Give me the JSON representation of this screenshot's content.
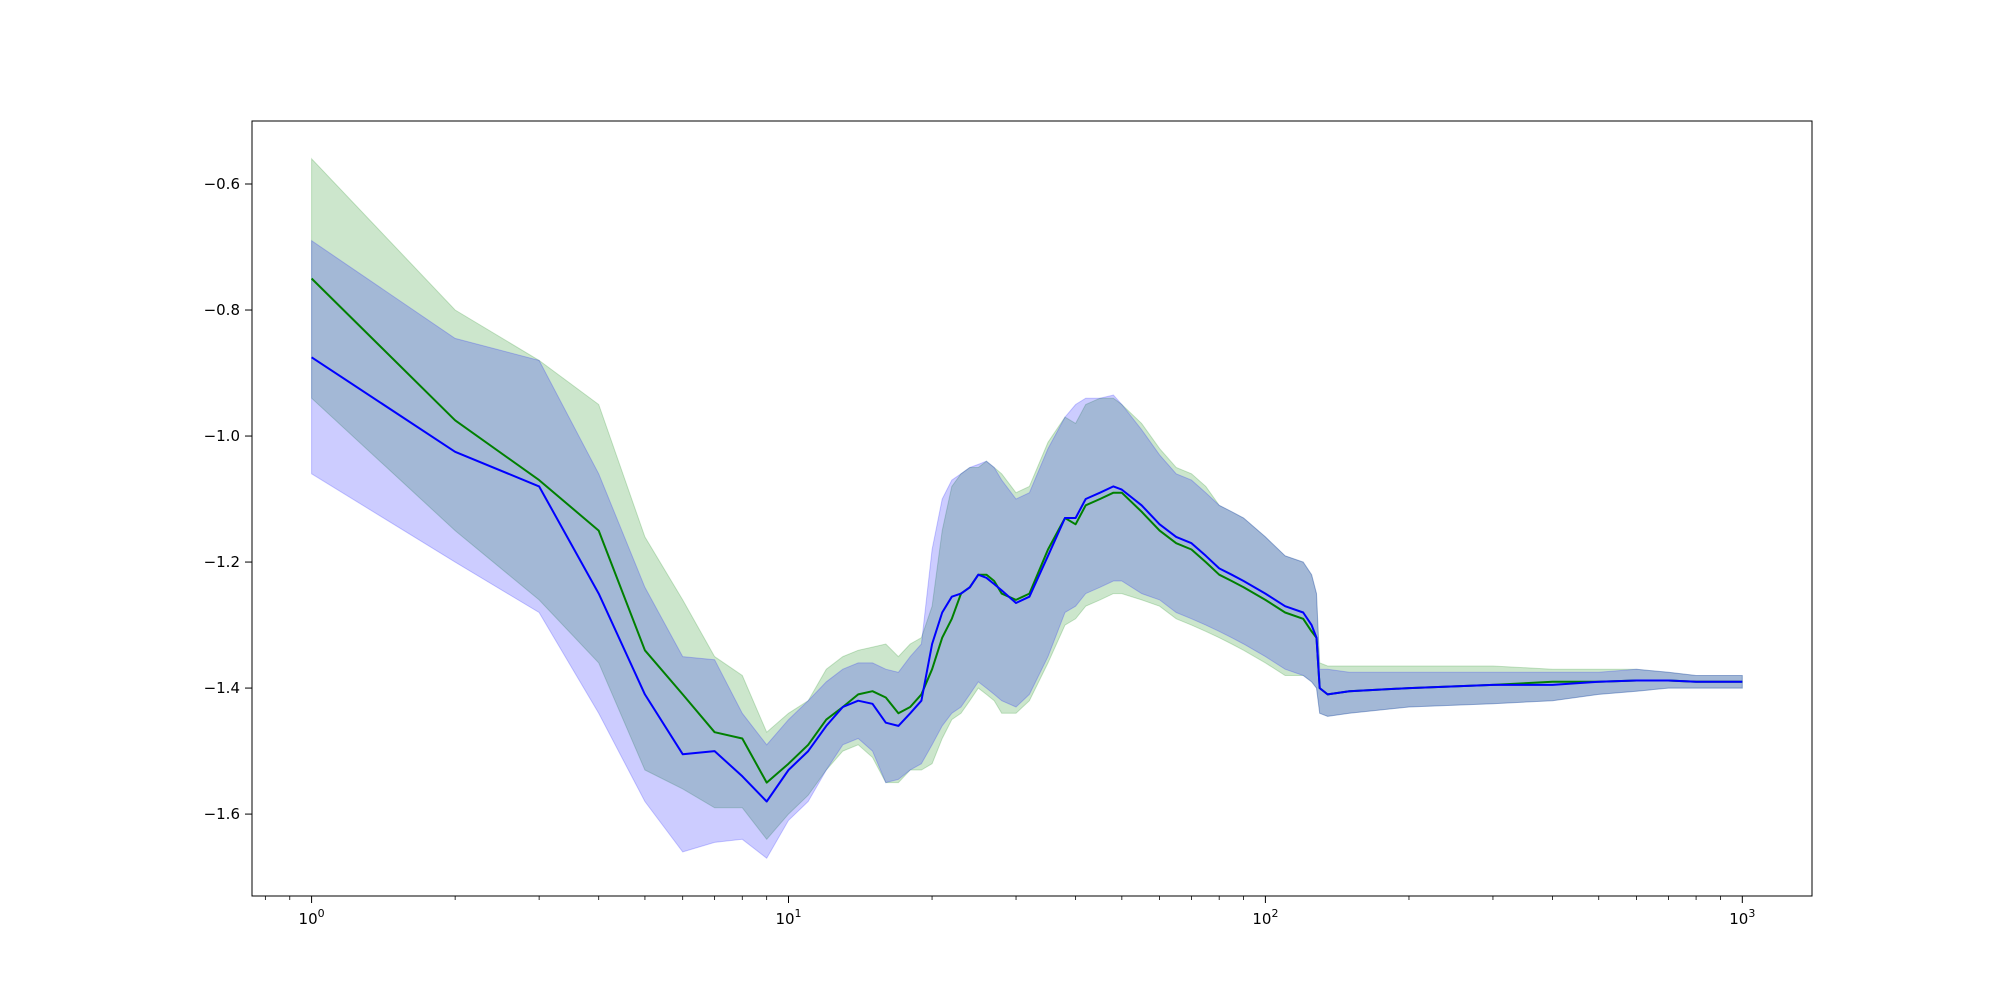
{
  "chart_data": {
    "type": "line",
    "title": "",
    "xlabel": "",
    "ylabel": "",
    "x_scale": "log",
    "xlim": [
      0.75,
      1400
    ],
    "ylim": [
      -1.73,
      -0.5
    ],
    "grid": false,
    "legend": "none",
    "x_tick_labels": [
      {
        "value": 1,
        "base": "10",
        "exp": "0"
      },
      {
        "value": 10,
        "base": "10",
        "exp": "1"
      },
      {
        "value": 100,
        "base": "10",
        "exp": "2"
      },
      {
        "value": 1000,
        "base": "10",
        "exp": "3"
      }
    ],
    "y_ticks": [
      {
        "value": -0.6,
        "label": "−0.6"
      },
      {
        "value": -0.8,
        "label": "−0.8"
      },
      {
        "value": -1.0,
        "label": "−1.0"
      },
      {
        "value": -1.2,
        "label": "−1.2"
      },
      {
        "value": -1.4,
        "label": "−1.4"
      },
      {
        "value": -1.6,
        "label": "−1.6"
      }
    ],
    "series": [
      {
        "color": "#008000",
        "band_color": "#008000",
        "band_opacity": 0.2,
        "x": [
          1,
          2,
          3,
          4,
          5,
          6,
          7,
          8,
          9,
          10,
          11,
          12,
          13,
          14,
          15,
          16,
          17,
          18,
          19,
          20,
          21,
          22,
          23,
          24,
          25,
          26,
          27,
          28,
          30,
          32,
          35,
          38,
          40,
          42,
          45,
          48,
          50,
          55,
          60,
          65,
          70,
          75,
          80,
          85,
          90,
          100,
          110,
          120,
          125,
          128,
          130,
          135,
          150,
          200,
          300,
          400,
          500,
          600,
          700,
          800,
          1000
        ],
        "y": [
          -0.75,
          -0.975,
          -1.07,
          -1.15,
          -1.34,
          -1.41,
          -1.47,
          -1.48,
          -1.55,
          -1.52,
          -1.49,
          -1.45,
          -1.43,
          -1.41,
          -1.405,
          -1.415,
          -1.44,
          -1.43,
          -1.41,
          -1.37,
          -1.32,
          -1.29,
          -1.25,
          -1.24,
          -1.22,
          -1.22,
          -1.23,
          -1.25,
          -1.26,
          -1.25,
          -1.18,
          -1.13,
          -1.14,
          -1.11,
          -1.1,
          -1.09,
          -1.09,
          -1.12,
          -1.15,
          -1.17,
          -1.18,
          -1.2,
          -1.22,
          -1.23,
          -1.24,
          -1.26,
          -1.28,
          -1.29,
          -1.31,
          -1.32,
          -1.4,
          -1.41,
          -1.405,
          -1.4,
          -1.395,
          -1.39,
          -1.39,
          -1.388,
          -1.388,
          -1.39,
          -1.39
        ],
        "lower": [
          -0.94,
          -1.15,
          -1.26,
          -1.36,
          -1.53,
          -1.56,
          -1.59,
          -1.59,
          -1.64,
          -1.6,
          -1.57,
          -1.53,
          -1.5,
          -1.49,
          -1.51,
          -1.55,
          -1.55,
          -1.53,
          -1.53,
          -1.52,
          -1.48,
          -1.45,
          -1.44,
          -1.42,
          -1.4,
          -1.41,
          -1.42,
          -1.44,
          -1.44,
          -1.42,
          -1.36,
          -1.3,
          -1.29,
          -1.27,
          -1.26,
          -1.25,
          -1.25,
          -1.26,
          -1.27,
          -1.29,
          -1.3,
          -1.31,
          -1.32,
          -1.33,
          -1.34,
          -1.36,
          -1.38,
          -1.38,
          -1.39,
          -1.4,
          -1.44,
          -1.445,
          -1.44,
          -1.43,
          -1.425,
          -1.42,
          -1.41,
          -1.405,
          -1.4,
          -1.4,
          -1.4
        ],
        "upper": [
          -0.56,
          -0.8,
          -0.88,
          -0.95,
          -1.16,
          -1.26,
          -1.35,
          -1.38,
          -1.47,
          -1.44,
          -1.42,
          -1.37,
          -1.35,
          -1.34,
          -1.335,
          -1.33,
          -1.35,
          -1.33,
          -1.32,
          -1.27,
          -1.15,
          -1.08,
          -1.06,
          -1.05,
          -1.05,
          -1.04,
          -1.05,
          -1.06,
          -1.09,
          -1.08,
          -1.01,
          -0.97,
          -0.98,
          -0.95,
          -0.94,
          -0.94,
          -0.95,
          -0.98,
          -1.02,
          -1.05,
          -1.06,
          -1.08,
          -1.11,
          -1.12,
          -1.13,
          -1.16,
          -1.19,
          -1.2,
          -1.22,
          -1.25,
          -1.36,
          -1.365,
          -1.365,
          -1.365,
          -1.365,
          -1.37,
          -1.37,
          -1.37,
          -1.375,
          -1.38,
          -1.38
        ]
      },
      {
        "color": "#0000ff",
        "band_color": "#0000ff",
        "band_opacity": 0.2,
        "x": [
          1,
          2,
          3,
          4,
          5,
          6,
          7,
          8,
          9,
          10,
          11,
          12,
          13,
          14,
          15,
          16,
          17,
          18,
          19,
          20,
          21,
          22,
          23,
          24,
          25,
          26,
          27,
          28,
          30,
          32,
          35,
          38,
          40,
          42,
          45,
          48,
          50,
          55,
          60,
          65,
          70,
          75,
          80,
          85,
          90,
          100,
          110,
          120,
          125,
          128,
          130,
          135,
          150,
          200,
          300,
          400,
          500,
          600,
          700,
          800,
          1000
        ],
        "y": [
          -0.875,
          -1.025,
          -1.08,
          -1.25,
          -1.41,
          -1.505,
          -1.5,
          -1.54,
          -1.58,
          -1.53,
          -1.5,
          -1.46,
          -1.43,
          -1.42,
          -1.425,
          -1.455,
          -1.46,
          -1.44,
          -1.42,
          -1.33,
          -1.28,
          -1.255,
          -1.25,
          -1.24,
          -1.22,
          -1.225,
          -1.235,
          -1.245,
          -1.265,
          -1.255,
          -1.19,
          -1.13,
          -1.13,
          -1.1,
          -1.09,
          -1.08,
          -1.085,
          -1.11,
          -1.14,
          -1.16,
          -1.17,
          -1.19,
          -1.21,
          -1.22,
          -1.23,
          -1.25,
          -1.27,
          -1.28,
          -1.3,
          -1.32,
          -1.4,
          -1.41,
          -1.405,
          -1.4,
          -1.395,
          -1.395,
          -1.39,
          -1.388,
          -1.388,
          -1.39,
          -1.39
        ],
        "lower": [
          -1.06,
          -1.2,
          -1.28,
          -1.44,
          -1.58,
          -1.66,
          -1.645,
          -1.64,
          -1.67,
          -1.61,
          -1.58,
          -1.53,
          -1.49,
          -1.48,
          -1.5,
          -1.55,
          -1.545,
          -1.53,
          -1.52,
          -1.49,
          -1.46,
          -1.44,
          -1.43,
          -1.41,
          -1.39,
          -1.4,
          -1.41,
          -1.42,
          -1.43,
          -1.41,
          -1.35,
          -1.28,
          -1.27,
          -1.25,
          -1.24,
          -1.23,
          -1.23,
          -1.25,
          -1.26,
          -1.28,
          -1.29,
          -1.3,
          -1.31,
          -1.32,
          -1.33,
          -1.35,
          -1.37,
          -1.38,
          -1.39,
          -1.4,
          -1.44,
          -1.445,
          -1.44,
          -1.43,
          -1.425,
          -1.42,
          -1.41,
          -1.405,
          -1.4,
          -1.4,
          -1.4
        ],
        "upper": [
          -0.69,
          -0.845,
          -0.88,
          -1.06,
          -1.24,
          -1.35,
          -1.355,
          -1.44,
          -1.49,
          -1.45,
          -1.42,
          -1.39,
          -1.37,
          -1.36,
          -1.36,
          -1.37,
          -1.375,
          -1.35,
          -1.33,
          -1.18,
          -1.1,
          -1.07,
          -1.06,
          -1.05,
          -1.045,
          -1.04,
          -1.05,
          -1.07,
          -1.1,
          -1.09,
          -1.02,
          -0.97,
          -0.95,
          -0.94,
          -0.94,
          -0.935,
          -0.95,
          -0.99,
          -1.03,
          -1.06,
          -1.07,
          -1.09,
          -1.11,
          -1.12,
          -1.13,
          -1.16,
          -1.19,
          -1.2,
          -1.22,
          -1.25,
          -1.37,
          -1.37,
          -1.375,
          -1.375,
          -1.375,
          -1.375,
          -1.375,
          -1.37,
          -1.375,
          -1.38,
          -1.38
        ]
      }
    ]
  }
}
